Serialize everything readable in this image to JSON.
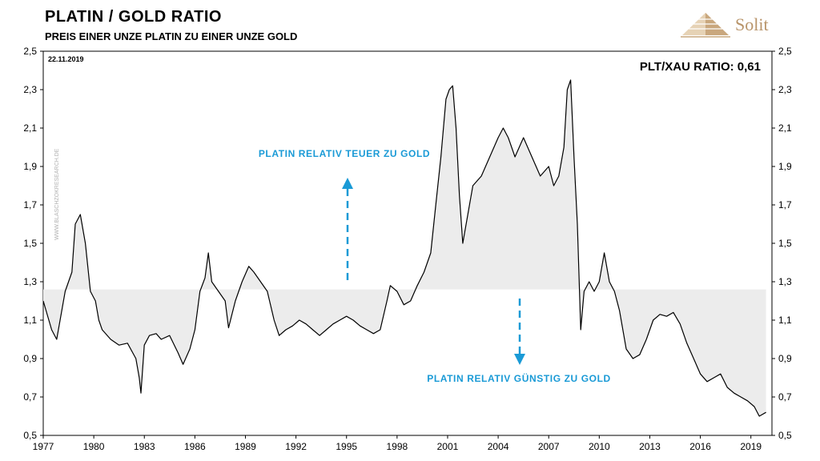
{
  "header": {
    "title": "PLATIN / GOLD RATIO",
    "subtitle": "PREIS EINER UNZE PLATIN ZU EINER UNZE GOLD",
    "brand": "Solit"
  },
  "colors": {
    "line": "#000000",
    "shade": "#ececec",
    "accent": "#1a9ad6",
    "brand": "#b8946a"
  },
  "chart_data": {
    "type": "line",
    "date_label": "22.11.2019",
    "ratio_label": "PLT/XAU RATIO: 0,61",
    "watermark": "WWW.BLASCHZOKRESEARCH.DE",
    "annotation_up": "PLATIN RELATIV TEUER ZU GOLD",
    "annotation_down": "PLATIN RELATIV GÜNSTIG ZU GOLD",
    "shade_baseline": 1.26,
    "xlim": [
      1977,
      2020.25
    ],
    "ylim": [
      0.5,
      2.5
    ],
    "x_ticks": [
      "1977",
      "1980",
      "1983",
      "1986",
      "1989",
      "1992",
      "1995",
      "1998",
      "2001",
      "2004",
      "2007",
      "2010",
      "2013",
      "2016",
      "2019"
    ],
    "y_ticks": [
      "0,5",
      "0,7",
      "0,9",
      "1,1",
      "1,3",
      "1,5",
      "1,7",
      "1,9",
      "2,1",
      "2,3",
      "2,5"
    ],
    "y_tick_values": [
      0.5,
      0.7,
      0.9,
      1.1,
      1.3,
      1.5,
      1.7,
      1.9,
      2.1,
      2.3,
      2.5
    ],
    "grid": true,
    "series": [
      {
        "x": [
          1977.0,
          1977.5,
          1977.8,
          1978.3,
          1978.7,
          1978.9,
          1979.2,
          1979.5,
          1979.8,
          1980.1,
          1980.3,
          1980.5,
          1981.0,
          1981.5,
          1982.0,
          1982.5,
          1982.7,
          1982.8,
          1983.0,
          1983.3,
          1983.7,
          1984.0,
          1984.5,
          1985.0,
          1985.3,
          1985.7,
          1986.0,
          1986.3,
          1986.6,
          1986.8,
          1987.0,
          1987.4,
          1987.8,
          1988.0,
          1988.4,
          1988.8,
          1989.2,
          1989.5,
          1989.9,
          1990.3,
          1990.7,
          1991.0,
          1991.4,
          1991.8,
          1992.2,
          1992.6,
          1993.0,
          1993.4,
          1993.8,
          1994.2,
          1994.6,
          1995.0,
          1995.4,
          1995.8,
          1996.2,
          1996.6,
          1997.0,
          1997.4,
          1997.6,
          1998.0,
          1998.4,
          1998.8,
          1999.2,
          1999.6,
          2000.0,
          2000.3,
          2000.6,
          2000.9,
          2001.1,
          2001.3,
          2001.5,
          2001.7,
          2001.9,
          2002.2,
          2002.5,
          2003.0,
          2003.5,
          2004.0,
          2004.3,
          2004.6,
          2005.0,
          2005.5,
          2006.0,
          2006.5,
          2007.0,
          2007.3,
          2007.6,
          2007.9,
          2008.1,
          2008.3,
          2008.5,
          2008.7,
          2008.9,
          2009.1,
          2009.4,
          2009.7,
          2010.0,
          2010.3,
          2010.6,
          2010.9,
          2011.2,
          2011.6,
          2012.0,
          2012.4,
          2012.8,
          2013.2,
          2013.6,
          2014.0,
          2014.4,
          2014.8,
          2015.2,
          2015.6,
          2016.0,
          2016.4,
          2016.8,
          2017.2,
          2017.6,
          2018.0,
          2018.4,
          2018.8,
          2019.2,
          2019.5,
          2019.9
        ],
        "y": [
          1.2,
          1.05,
          1.0,
          1.25,
          1.35,
          1.6,
          1.65,
          1.5,
          1.25,
          1.2,
          1.1,
          1.05,
          1.0,
          0.97,
          0.98,
          0.9,
          0.8,
          0.72,
          0.97,
          1.02,
          1.03,
          1.0,
          1.02,
          0.93,
          0.87,
          0.95,
          1.05,
          1.25,
          1.32,
          1.45,
          1.3,
          1.25,
          1.2,
          1.06,
          1.2,
          1.3,
          1.38,
          1.35,
          1.3,
          1.25,
          1.1,
          1.02,
          1.05,
          1.07,
          1.1,
          1.08,
          1.05,
          1.02,
          1.05,
          1.08,
          1.1,
          1.12,
          1.1,
          1.07,
          1.05,
          1.03,
          1.05,
          1.2,
          1.28,
          1.25,
          1.18,
          1.2,
          1.28,
          1.35,
          1.45,
          1.7,
          1.95,
          2.25,
          2.3,
          2.32,
          2.1,
          1.75,
          1.5,
          1.65,
          1.8,
          1.85,
          1.95,
          2.05,
          2.1,
          2.05,
          1.95,
          2.05,
          1.95,
          1.85,
          1.9,
          1.8,
          1.85,
          2.0,
          2.3,
          2.35,
          1.95,
          1.6,
          1.05,
          1.25,
          1.3,
          1.25,
          1.3,
          1.45,
          1.3,
          1.25,
          1.15,
          0.95,
          0.9,
          0.92,
          1.0,
          1.1,
          1.13,
          1.12,
          1.14,
          1.08,
          0.98,
          0.9,
          0.82,
          0.78,
          0.8,
          0.82,
          0.75,
          0.72,
          0.7,
          0.68,
          0.65,
          0.6,
          0.62
        ]
      }
    ]
  }
}
